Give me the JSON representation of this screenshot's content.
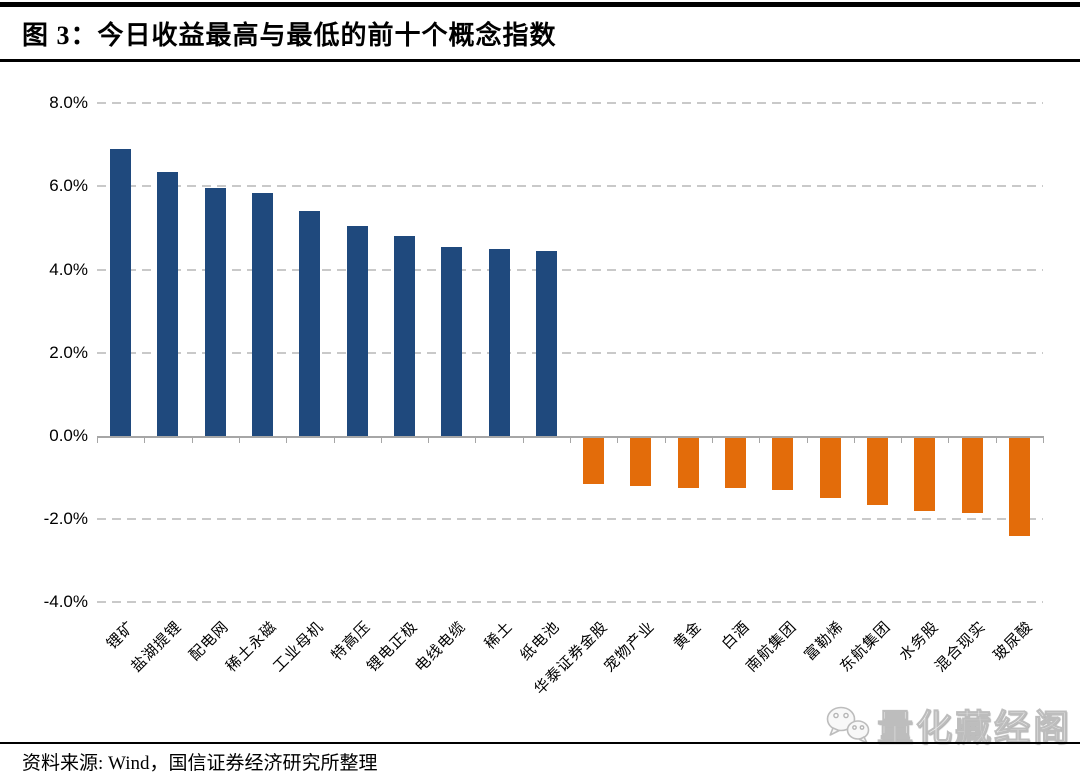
{
  "figure": {
    "source_note": "资料来源: Wind，国信证券经济研究所整理",
    "watermark": "量化藏经阁"
  },
  "chart_data": {
    "type": "bar",
    "title": "图 3：今日收益最高与最低的前十个概念指数",
    "categories": [
      "锂矿",
      "盐湖提锂",
      "配电网",
      "稀土永磁",
      "工业母机",
      "特高压",
      "锂电正极",
      "电线电缆",
      "稀土",
      "纸电池",
      "华泰证券金股",
      "宠物产业",
      "黄金",
      "白酒",
      "南航集团",
      "富勒烯",
      "东航集团",
      "水务股",
      "混合现实",
      "玻尿酸"
    ],
    "values": [
      6.9,
      6.35,
      5.95,
      5.85,
      5.4,
      5.05,
      4.8,
      4.55,
      4.5,
      4.45,
      -1.1,
      -1.15,
      -1.2,
      -1.2,
      -1.25,
      -1.45,
      -1.6,
      -1.75,
      -1.8,
      -2.35
    ],
    "value_unit": "%",
    "xlabel": "",
    "ylabel": "",
    "ylim": [
      -4,
      8
    ],
    "ytick_labels": [
      "8.0%",
      "6.0%",
      "4.0%",
      "2.0%",
      "0.0%",
      "-2.0%",
      "-4.0%"
    ],
    "ytick_values": [
      8,
      6,
      4,
      2,
      0,
      -2,
      -4
    ],
    "grid": "horizontal-dashed",
    "legend": "none",
    "colors": {
      "positive_bar": "#1F497D",
      "negative_bar": "#E36C0A",
      "gridline": "#C9C9C9",
      "axis_line": "#A6A6A6"
    }
  }
}
